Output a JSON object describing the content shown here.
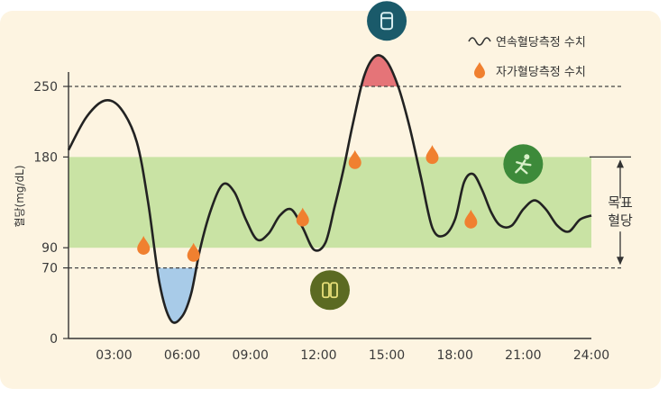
{
  "chart_data": {
    "type": "line",
    "title": "",
    "xlabel": "",
    "ylabel": "혈당(mg/dL)",
    "xlim": [
      1.0,
      24.0
    ],
    "ylim": [
      0,
      300
    ],
    "x_ticks": [
      "03:00",
      "06:00",
      "09:00",
      "12:00",
      "15:00",
      "18:00",
      "21:00",
      "24:00"
    ],
    "x_tick_values": [
      3,
      6,
      9,
      12,
      15,
      18,
      21,
      24
    ],
    "y_ticks": [
      0,
      70,
      90,
      180,
      250
    ],
    "reference_lines": [
      70,
      250
    ],
    "target_range": {
      "low": 90,
      "high": 180,
      "label_line1": "목표",
      "label_line2": "혈당"
    },
    "legend": {
      "position": "top-right",
      "items": [
        {
          "label": "연속혈당측정 수치",
          "marker": "wave-line"
        },
        {
          "label": "자가혈당측정 수치",
          "marker": "orange-drop"
        }
      ]
    },
    "series": [
      {
        "name": "연속혈당측정 수치",
        "x": [
          1.0,
          1.8,
          2.6,
          3.3,
          4.0,
          4.5,
          5.0,
          5.5,
          6.0,
          6.4,
          6.8,
          7.3,
          7.8,
          8.3,
          8.8,
          9.3,
          9.8,
          10.3,
          10.8,
          11.3,
          11.8,
          12.3,
          12.7,
          13.1,
          13.5,
          14.0,
          14.5,
          15.0,
          15.5,
          16.0,
          16.5,
          17.0,
          17.5,
          18.0,
          18.4,
          18.8,
          19.2,
          19.6,
          20.0,
          20.5,
          21.0,
          21.5,
          22.0,
          22.5,
          23.0,
          23.5,
          24.0
        ],
        "y": [
          187,
          220,
          236,
          228,
          195,
          135,
          55,
          18,
          22,
          45,
          90,
          130,
          153,
          145,
          118,
          98,
          104,
          122,
          128,
          110,
          88,
          95,
          130,
          168,
          212,
          260,
          280,
          275,
          250,
          210,
          160,
          110,
          102,
          118,
          155,
          163,
          147,
          125,
          112,
          112,
          128,
          137,
          128,
          112,
          106,
          118,
          122
        ]
      },
      {
        "name": "자가혈당측정 수치",
        "x": [
          4.3,
          6.5,
          11.3,
          13.6,
          17.0,
          18.7
        ],
        "y": [
          92,
          85,
          120,
          177,
          182,
          118
        ]
      }
    ],
    "event_icons": [
      {
        "name": "insulin-pen-icon",
        "x": 15.0,
        "y": 315,
        "color": "#1a5a6a"
      },
      {
        "name": "food-icon",
        "x": 12.5,
        "y": 48,
        "color": "#5b6a22"
      },
      {
        "name": "exercise-icon",
        "x": 21.0,
        "y": 173,
        "color": "#3d8a3a"
      }
    ],
    "colors": {
      "target_band": "#c9e3a4",
      "low_fill": "#a8cbe8",
      "high_fill": "#e57478",
      "curve": "#222222",
      "smbg_marker": "#f08030"
    }
  }
}
